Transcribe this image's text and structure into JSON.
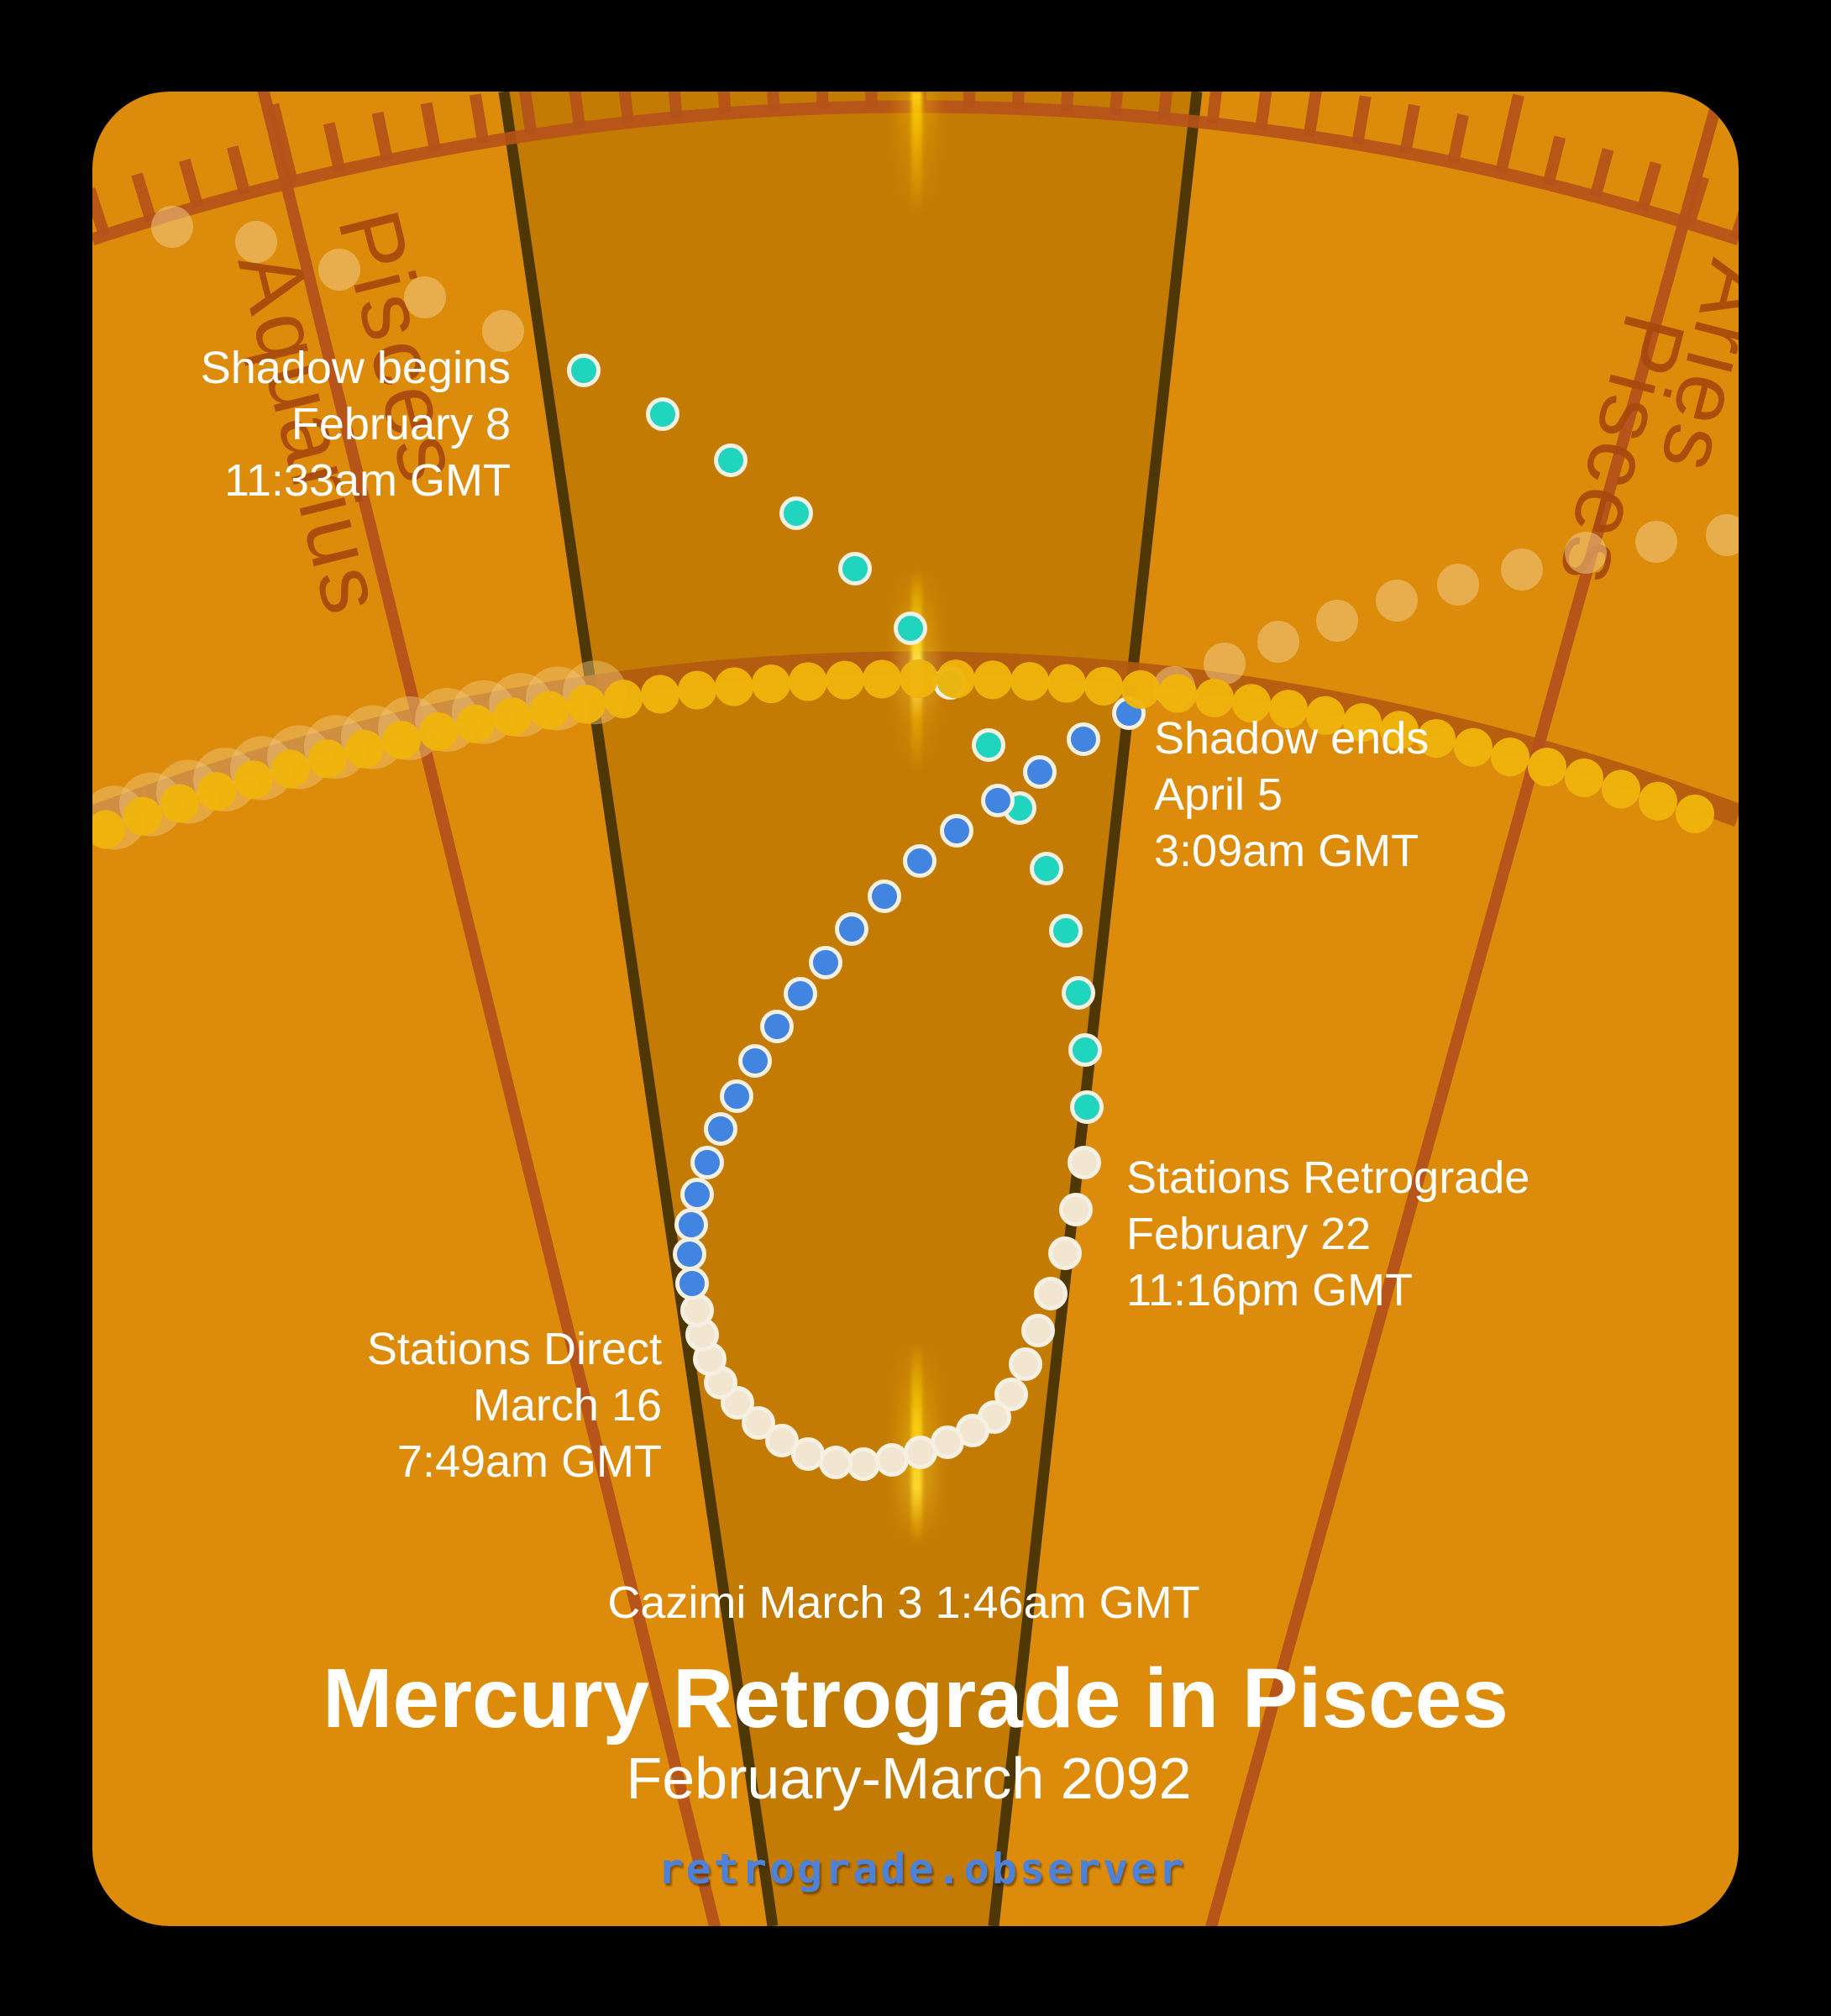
{
  "header": {
    "title": "Mercury Retrograde in Pisces",
    "subtitle": "February-March 2092",
    "watermark": "retrograde.observer",
    "cazimi_line": "Cazimi March 3 1:46am GMT"
  },
  "annotations": [
    {
      "id": "shadow-begins",
      "lines": [
        "Shadow begins",
        "February 8",
        "11:33am GMT"
      ],
      "align": "right"
    },
    {
      "id": "shadow-ends",
      "lines": [
        "Shadow ends",
        "April 5",
        "3:09am GMT"
      ],
      "align": "left"
    },
    {
      "id": "stations-retrograde",
      "lines": [
        "Stations Retrograde",
        "February 22",
        "11:16pm GMT"
      ],
      "align": "left"
    },
    {
      "id": "stations-direct",
      "lines": [
        "Stations Direct",
        "March 16",
        "7:49am GMT"
      ],
      "align": "right"
    }
  ],
  "zodiac": {
    "left_cusp": {
      "right_side": "Pisces",
      "left_side": "Aquarius"
    },
    "right_cusp": {
      "right_side": "Aries",
      "left_side": "Pisces"
    }
  },
  "colors": {
    "background": "#000000",
    "panel_outer": "#DC8C0A",
    "panel_wedge": "#C47B04",
    "wedge_line": "#4E3703",
    "scale_red": "#B5521A",
    "ecliptic_band": "#B35A10",
    "zodiac_label": "#A8490C",
    "sun_dot": "#EFB40C",
    "sun_halo": "#F0C87E",
    "mercury_faded": "#F4CD8C",
    "mercury_teal": "#20D5BE",
    "mercury_cream": "#F2E6D0",
    "mercury_blue": "#4285E0",
    "dot_stroke": "#F6F0E2",
    "cazimi_glow": "#FFD60A",
    "text": "#FFFFFF",
    "watermark_blue": "#4D82D8"
  },
  "chart_data": {
    "type": "scatter",
    "title": "Mercury Retrograde in Pisces",
    "subtitle": "February-March 2092",
    "x_meaning": "ecliptic longitude (Aquarius - Pisces - Aries, one dot per day)",
    "y_meaning": "ecliptic latitude (projected, north up)",
    "events": [
      {
        "label": "Shadow begins",
        "date": "February 8",
        "time": "11:33am GMT"
      },
      {
        "label": "Stations Retrograde",
        "date": "February 22",
        "time": "11:16pm GMT"
      },
      {
        "label": "Cazimi",
        "date": "March 3",
        "time": "1:46am GMT"
      },
      {
        "label": "Stations Direct",
        "date": "March 16",
        "time": "7:49am GMT"
      },
      {
        "label": "Shadow ends",
        "date": "April 5",
        "time": "3:09am GMT"
      }
    ],
    "sun_path": {
      "vertex": [
        1098,
        792
      ],
      "k": 0.00019,
      "x_start": 126,
      "x_end": 2050,
      "step": 44,
      "halo_end": 700
    },
    "degree_scale": {
      "cx": 1090,
      "cy": 3243,
      "r": 3116,
      "a0": -18.05,
      "step_deg": 1.068,
      "count": 35,
      "len": 58,
      "long_len": 95,
      "long_phase": 4
    },
    "cazimi_longitude_x": 1092,
    "series": [
      {
        "name": "mercury_pre_shadow_faded",
        "layer": "g-fade",
        "color": "#F4CD8C",
        "opacity": 0.52,
        "r": 25,
        "points": [
          [
            205,
            270
          ],
          [
            305,
            288
          ],
          [
            404,
            321
          ],
          [
            506,
            354
          ],
          [
            599,
            394
          ]
        ]
      },
      {
        "name": "mercury_post_shadow_faded",
        "layer": "g-fade",
        "color": "#F4CD8C",
        "opacity": 0.52,
        "r": 25,
        "points": [
          [
            1398,
            818
          ],
          [
            1458,
            790
          ],
          [
            1522,
            764
          ],
          [
            1592,
            739
          ],
          [
            1663,
            715
          ],
          [
            1736,
            696
          ],
          [
            1812,
            678
          ],
          [
            1888,
            658
          ],
          [
            1972,
            645
          ],
          [
            2056,
            637
          ]
        ]
      },
      {
        "name": "mercury_direct_ingress_teal",
        "layer": "g-mercury",
        "color": "#20D5BE",
        "stroke": "#F6F0E2",
        "r": 17.5,
        "points": [
          [
            695,
            441
          ],
          [
            789,
            493
          ],
          [
            870,
            548
          ],
          [
            948,
            611
          ],
          [
            1018,
            677
          ],
          [
            1084,
            748
          ],
          [
            1131,
            813
          ],
          [
            1177,
            887
          ],
          [
            1214,
            962
          ],
          [
            1246,
            1034
          ],
          [
            1269,
            1108
          ],
          [
            1284,
            1182
          ],
          [
            1292,
            1250
          ],
          [
            1294,
            1318
          ]
        ]
      },
      {
        "name": "mercury_retrograde_cream",
        "layer": "g-mercury",
        "color": "#F2E6D0",
        "stroke": "#F6F0E2",
        "r": 17.5,
        "points": [
          [
            1291,
            1384
          ],
          [
            1281,
            1440
          ],
          [
            1268,
            1492
          ],
          [
            1251,
            1540
          ],
          [
            1236,
            1584
          ],
          [
            1221,
            1624
          ],
          [
            1204,
            1660
          ],
          [
            1184,
            1687
          ],
          [
            1158,
            1703
          ],
          [
            1128,
            1717
          ],
          [
            1096,
            1729
          ],
          [
            1062,
            1738
          ],
          [
            1028,
            1743
          ],
          [
            995,
            1741
          ],
          [
            962,
            1731
          ],
          [
            931,
            1715
          ],
          [
            903,
            1694
          ],
          [
            878,
            1670
          ],
          [
            858,
            1646
          ],
          [
            845,
            1618
          ],
          [
            836,
            1589
          ],
          [
            830,
            1560
          ]
        ]
      },
      {
        "name": "mercury_direct_egress_blue",
        "layer": "g-mercury",
        "color": "#4285E0",
        "stroke": "#F6F0E2",
        "r": 17.5,
        "points": [
          [
            824,
            1528
          ],
          [
            821,
            1493
          ],
          [
            823,
            1458
          ],
          [
            830,
            1422
          ],
          [
            842,
            1384
          ],
          [
            858,
            1344
          ],
          [
            877,
            1305
          ],
          [
            899,
            1263
          ],
          [
            925,
            1222
          ],
          [
            953,
            1183
          ],
          [
            983,
            1146
          ],
          [
            1014,
            1106
          ],
          [
            1053,
            1067
          ],
          [
            1095,
            1025
          ],
          [
            1139,
            989
          ],
          [
            1188,
            953
          ],
          [
            1238,
            919
          ],
          [
            1290,
            880
          ],
          [
            1344,
            849
          ]
        ]
      }
    ]
  }
}
